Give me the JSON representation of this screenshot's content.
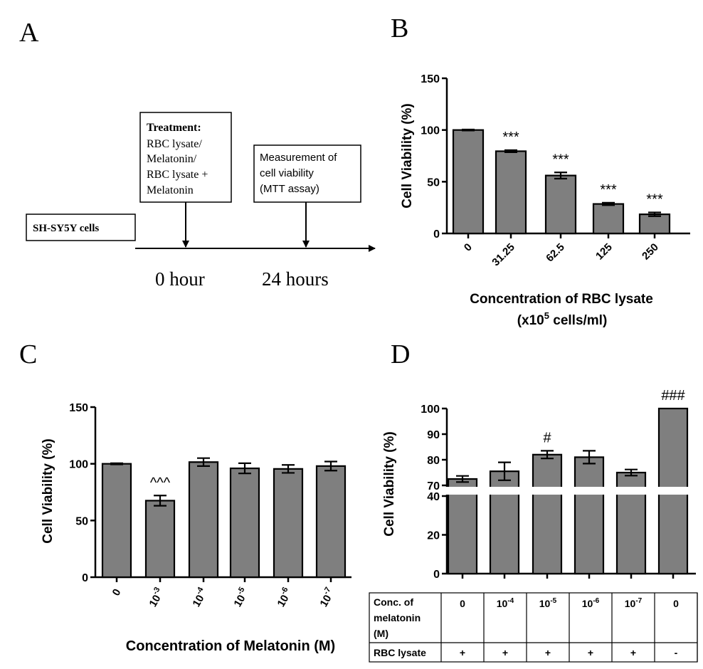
{
  "panels": {
    "A": {
      "label": "A",
      "cell_box": "SH-SY5Y cells",
      "treatment_title": "Treatment:",
      "treatment_lines": [
        "RBC lysate/",
        "Melatonin/",
        "RBC lysate +",
        "Melatonin"
      ],
      "measure_lines": [
        "Measurement of",
        "cell viability",
        "(MTT assay)"
      ],
      "time0": "0 hour",
      "time24": "24 hours"
    },
    "B": {
      "label": "B"
    },
    "C": {
      "label": "C"
    },
    "D": {
      "label": "D"
    }
  },
  "chart_data": [
    {
      "id": "B",
      "type": "bar",
      "categories": [
        "0",
        "31.25",
        "62.5",
        "125",
        "250"
      ],
      "values": [
        100,
        79.5,
        56,
        28.5,
        18.5
      ],
      "errors": [
        0.5,
        1,
        3,
        1.2,
        1.8
      ],
      "annotations": [
        "",
        "***",
        "***",
        "***",
        "***"
      ],
      "ylabel": "Cell Viability (%)",
      "xlabel_line1": "Concentration of RBC lysate",
      "xlabel_line2_pre": "(x10",
      "xlabel_line2_sup": "5",
      "xlabel_line2_post": " cells/ml)",
      "ylim": [
        0,
        150
      ],
      "yticks": [
        0,
        50,
        100,
        150
      ]
    },
    {
      "id": "C",
      "type": "bar",
      "categories": [
        {
          "base": "0",
          "sup": ""
        },
        {
          "base": "10",
          "sup": "-3"
        },
        {
          "base": "10",
          "sup": "-4"
        },
        {
          "base": "10",
          "sup": "-5"
        },
        {
          "base": "10",
          "sup": "-6"
        },
        {
          "base": "10",
          "sup": "-7"
        }
      ],
      "values": [
        100,
        67.5,
        101.5,
        96,
        95.5,
        98
      ],
      "errors": [
        0.5,
        4.5,
        3.5,
        4.5,
        3.5,
        4
      ],
      "annotations": [
        "",
        "^^^",
        "",
        "",
        "",
        ""
      ],
      "ylabel": "Cell Viability (%)",
      "xlabel": "Concentration of Melatonin (M)",
      "ylim": [
        0,
        150
      ],
      "yticks": [
        0,
        50,
        100,
        150
      ]
    },
    {
      "id": "D",
      "type": "bar",
      "values": [
        72.5,
        75.5,
        82,
        81,
        75,
        100
      ],
      "errors": [
        1.2,
        3.5,
        1.5,
        2.5,
        1.2,
        0
      ],
      "annotations": [
        "",
        "",
        "#",
        "",
        "",
        "###"
      ],
      "ylabel": "Cell Viability (%)",
      "y_axis_break": {
        "lower": [
          0,
          40
        ],
        "upper": [
          70,
          100
        ]
      },
      "yticks_lower": [
        0,
        20,
        40
      ],
      "yticks_upper": [
        70,
        80,
        90,
        100
      ],
      "table": {
        "row1_label": [
          "Conc. of",
          "melatonin",
          "(M)"
        ],
        "row1_values": [
          {
            "base": "0",
            "sup": ""
          },
          {
            "base": "10",
            "sup": "-4"
          },
          {
            "base": "10",
            "sup": "-5"
          },
          {
            "base": "10",
            "sup": "-6"
          },
          {
            "base": "10",
            "sup": "-7"
          },
          {
            "base": "0",
            "sup": ""
          }
        ],
        "row2_label": "RBC lysate",
        "row2_values": [
          "+",
          "+",
          "+",
          "+",
          "+",
          "-"
        ]
      }
    }
  ]
}
